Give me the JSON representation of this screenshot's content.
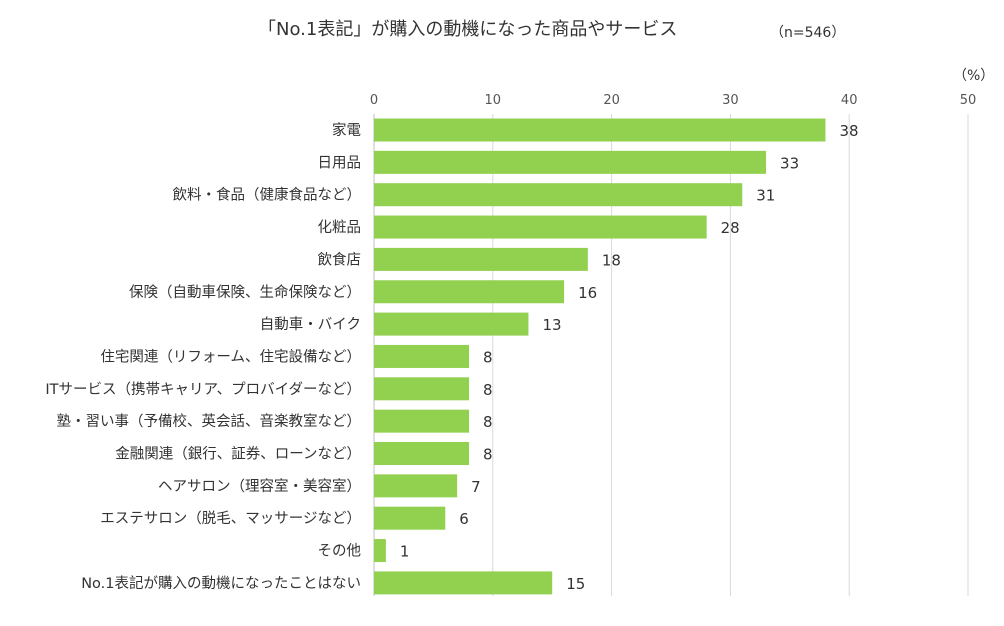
{
  "chart_data": {
    "type": "bar",
    "orientation": "horizontal",
    "title": "「No.1表記」が購入の動機になった商品やサービス",
    "sample_note": "（n=546）",
    "unit_label": "（%）",
    "xlim": [
      0,
      50
    ],
    "x_ticks": [
      "0",
      "10",
      "20",
      "30",
      "40",
      "50"
    ],
    "grid": true,
    "bar_color": "#92d050",
    "categories": [
      "家電",
      "日用品",
      "飲料・食品（健康食品など）",
      "化粧品",
      "飲食店",
      "保険（自動車保険、生命保険など）",
      "自動車・バイク",
      "住宅関連（リフォーム、住宅設備など）",
      "ITサービス（携帯キャリア、プロバイダーなど）",
      "塾・習い事（予備校、英会話、音楽教室など）",
      "金融関連（銀行、証券、ローンなど）",
      "ヘアサロン（理容室・美容室）",
      "エステサロン（脱毛、マッサージなど）",
      "その他",
      "No.1表記が購入の動機になったことはない"
    ],
    "values": [
      38,
      33,
      31,
      28,
      18,
      16,
      13,
      8,
      8,
      8,
      8,
      7,
      6,
      1,
      15
    ],
    "value_labels": [
      "38",
      "33",
      "31",
      "28",
      "18",
      "16",
      "13",
      "8",
      "8",
      "8",
      "8",
      "7",
      "6",
      "1",
      "15"
    ]
  }
}
